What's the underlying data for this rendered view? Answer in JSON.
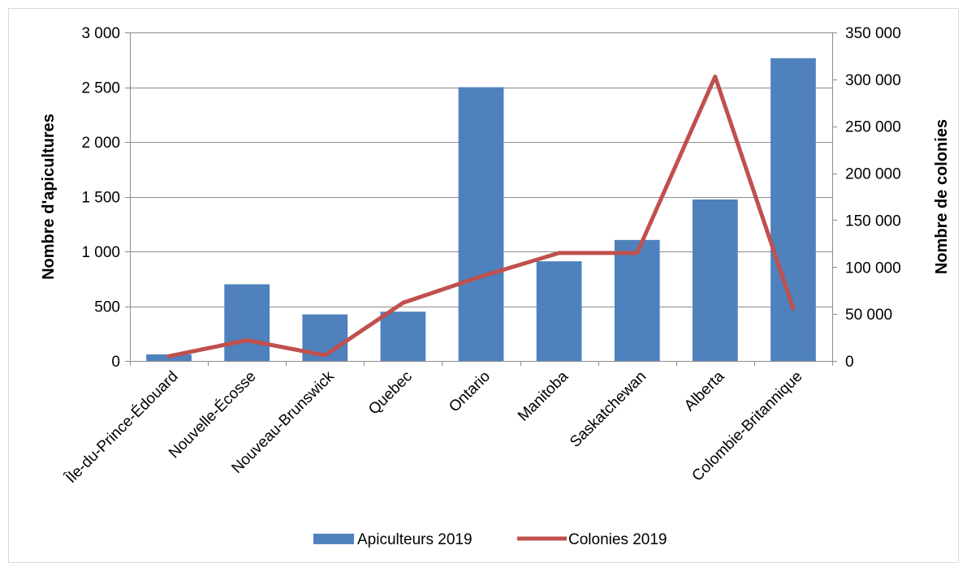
{
  "chart_data": {
    "type": "bar",
    "categories": [
      "Île-du-Prince-Édouard",
      "Nouvelle-Écosse",
      "Nouveau-Brunswick",
      "Quebec",
      "Ontario",
      "Manitoba",
      "Saskatchewan",
      "Alberta",
      "Colombie-Britannique"
    ],
    "series": [
      {
        "name": "Apiculteurs 2019",
        "type": "bar",
        "axis": "left",
        "color": "#4F81BD",
        "values": [
          60,
          700,
          425,
          450,
          2500,
          910,
          1105,
          1475,
          2765
        ]
      },
      {
        "name": "Colonies 2019",
        "type": "line",
        "axis": "right",
        "color": "#C0504D",
        "values": [
          5000,
          22000,
          6000,
          62000,
          90000,
          115000,
          115000,
          303000,
          56000
        ]
      }
    ],
    "ylabel": "Nombre d'apicultures",
    "y2label": "Nombre de colonies",
    "ylim": [
      0,
      3000
    ],
    "y2lim": [
      0,
      350000
    ],
    "yticks": [
      0,
      500,
      1000,
      1500,
      2000,
      2500,
      3000
    ],
    "yticklabels": [
      "0",
      "500",
      "1 000",
      "1 500",
      "2 000",
      "2 500",
      "3 000"
    ],
    "y2ticks": [
      0,
      50000,
      100000,
      150000,
      200000,
      250000,
      300000,
      350000
    ],
    "y2ticklabels": [
      "0",
      "50 000",
      "100 000",
      "150 000",
      "200 000",
      "250 000",
      "300 000",
      "350 000"
    ],
    "grid": true,
    "legend": "bottom"
  }
}
